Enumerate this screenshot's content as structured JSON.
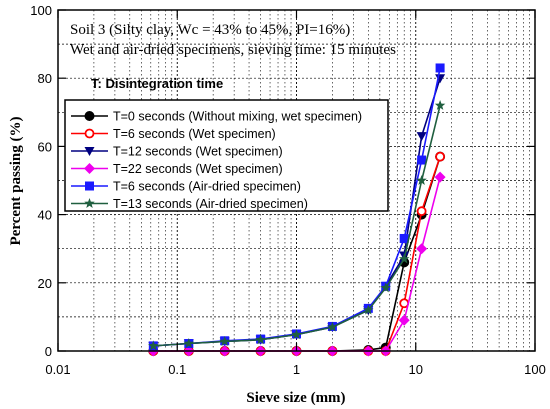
{
  "chart_data": {
    "type": "line",
    "x_scale": "log",
    "xlim": [
      0.01,
      100
    ],
    "ylim": [
      0,
      100
    ],
    "xlabel": "Sieve size (mm)",
    "ylabel": "Percent passing  (%)",
    "grid": true,
    "legend_position": "center-left",
    "x_ticks": [
      0.01,
      0.1,
      1,
      10,
      100
    ],
    "x_tick_labels": [
      "0.01",
      "0.1",
      "1",
      "10",
      "100"
    ],
    "y_ticks": [
      0,
      20,
      40,
      60,
      80,
      100
    ],
    "y_tick_labels": [
      "0",
      "20",
      "40",
      "60",
      "80",
      "100"
    ],
    "annotations": {
      "line1": "Soil 3 (Silty clay, Wc = 43% to 45%, PI=16%)",
      "line2": "Wet and air-dried specimens, sieving time: 15 minutes",
      "line3": "T: Disintegration time"
    },
    "series": [
      {
        "name": "T=0 seconds (Without mixing, wet specimen)",
        "color": "#000000",
        "marker": "circle-filled",
        "x": [
          0.063,
          0.125,
          0.25,
          0.5,
          1,
          2,
          4,
          5.6,
          8,
          11.2,
          16
        ],
        "y": [
          0,
          0,
          0,
          0,
          0,
          0,
          0.3,
          1,
          26,
          40,
          57
        ]
      },
      {
        "name": "T=6 seconds (Wet specimen)",
        "color": "#ff0000",
        "marker": "circle-open",
        "x": [
          0.063,
          0.125,
          0.25,
          0.5,
          1,
          2,
          4,
          5.6,
          8,
          11.2,
          16
        ],
        "y": [
          0,
          0,
          0,
          0,
          0,
          0,
          0,
          0,
          14,
          41,
          57
        ]
      },
      {
        "name": "T=12 seconds (Wet specimen)",
        "color": "#000080",
        "marker": "triangle-down",
        "x": [
          0.063,
          0.125,
          0.25,
          0.5,
          1,
          2,
          4,
          5.6,
          8,
          11.2,
          16
        ],
        "y": [
          1.5,
          2.2,
          2.8,
          3.3,
          4.8,
          7,
          12,
          19,
          28,
          63,
          80
        ]
      },
      {
        "name": "T=22 seconds (Wet specimen)",
        "color": "#ee00ee",
        "marker": "diamond",
        "x": [
          0.063,
          0.125,
          0.25,
          0.5,
          1,
          2,
          4,
          5.6,
          8,
          11.2,
          16
        ],
        "y": [
          0,
          0,
          0,
          0,
          0,
          0,
          0,
          0,
          9,
          30,
          51
        ]
      },
      {
        "name": "T=6 seconds (Air-dried specimen)",
        "color": "#1a1aff",
        "marker": "square",
        "x": [
          0.063,
          0.125,
          0.25,
          0.5,
          1,
          2,
          4,
          5.6,
          8,
          11.2,
          16
        ],
        "y": [
          1.5,
          2.2,
          3,
          3.5,
          5,
          7.2,
          12.5,
          19,
          33,
          56,
          83
        ]
      },
      {
        "name": "T=13 seconds (Air-dried specimen)",
        "color": "#1f5f3f",
        "marker": "star",
        "x": [
          0.063,
          0.125,
          0.25,
          0.5,
          1,
          2,
          4,
          5.6,
          8,
          11.2,
          16
        ],
        "y": [
          1.5,
          2.2,
          2.8,
          3.3,
          4.8,
          7,
          12,
          18.5,
          27,
          50,
          72
        ]
      }
    ]
  }
}
